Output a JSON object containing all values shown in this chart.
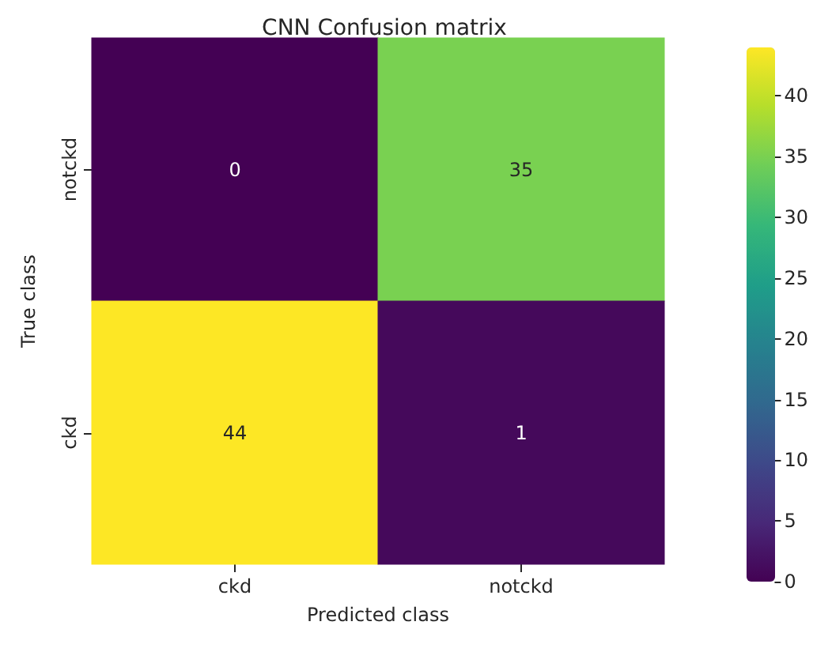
{
  "chart_data": {
    "type": "heatmap",
    "title": "CNN Confusion matrix",
    "xlabel": "Predicted class",
    "ylabel": "True class",
    "categories": [
      "ckd",
      "notckd"
    ],
    "y_categories": [
      "notckd",
      "ckd"
    ],
    "cells": [
      [
        0,
        35
      ],
      [
        44,
        1
      ]
    ],
    "clim": [
      0,
      44
    ],
    "cticks": [
      0,
      5,
      10,
      15,
      20,
      25,
      30,
      35,
      40
    ],
    "data_labels": true
  }
}
